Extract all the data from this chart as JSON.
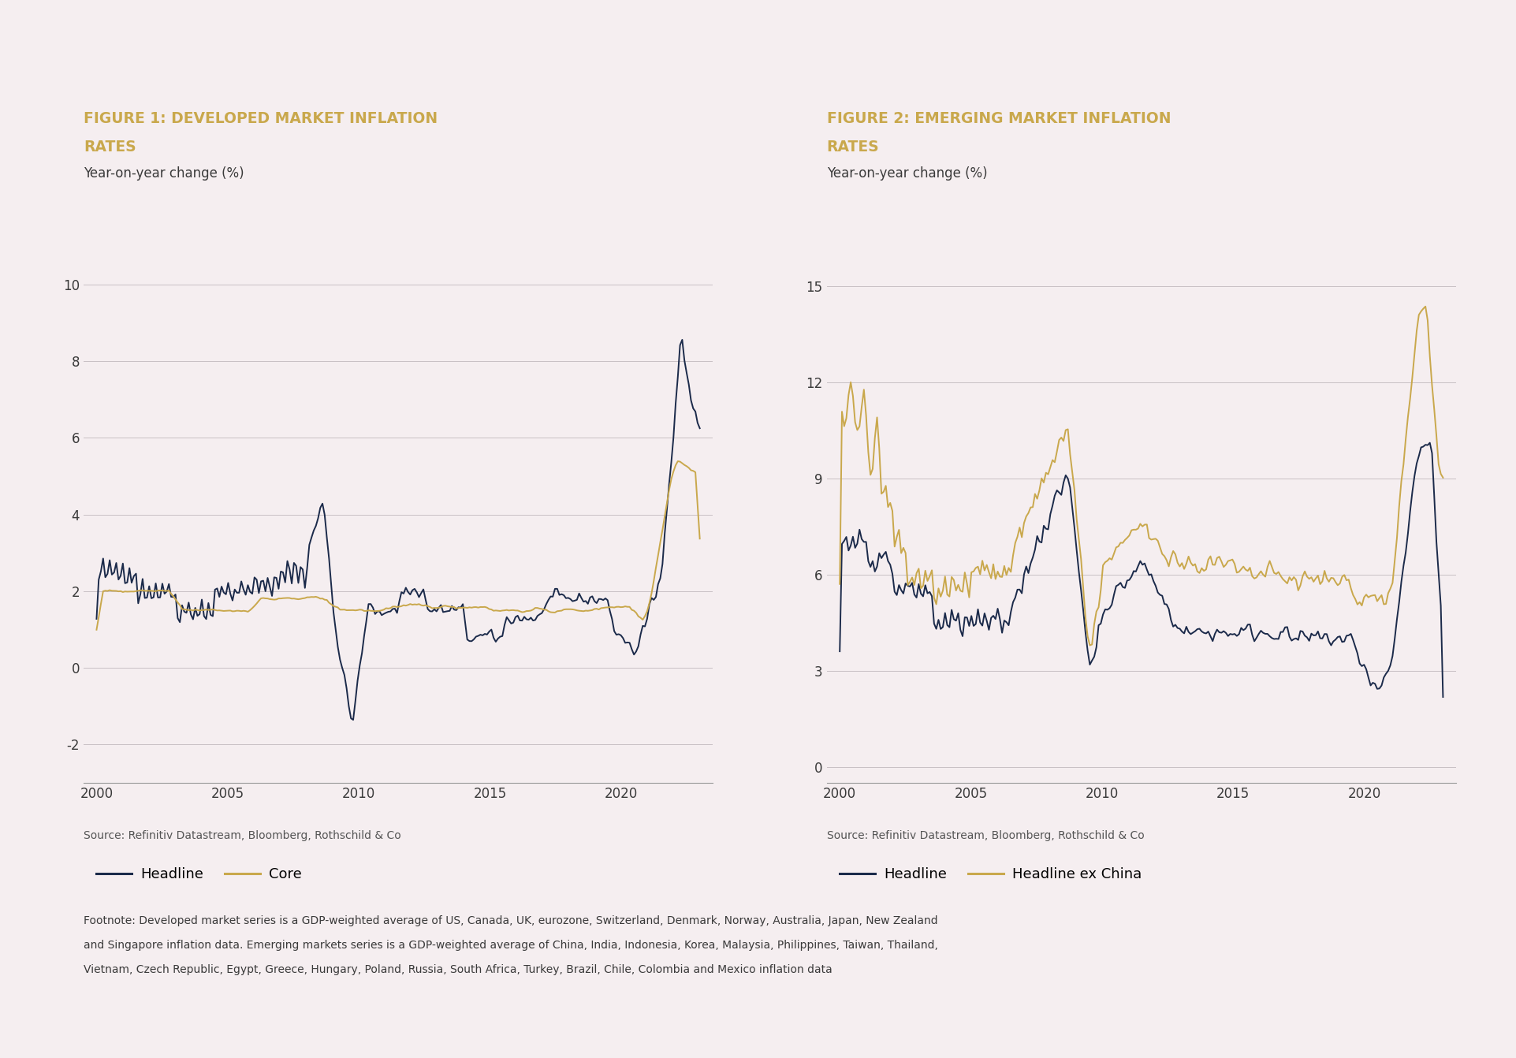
{
  "fig1_title_line1": "FIGURE 1: DEVELOPED MARKET INFLATION",
  "fig1_title_line2": "RATES",
  "fig2_title_line1": "FIGURE 2: EMERGING MARKET INFLATION",
  "fig2_title_line2": "RATES",
  "subtitle": "Year-on-year change (%)",
  "source": "Source: Refinitiv Datastream, Bloomberg, Rothschild & Co",
  "footnote_line1": "Footnote: Developed market series is a GDP-weighted average of US, Canada, UK, eurozone, Switzerland, Denmark, Norway, Australia, Japan, New Zealand",
  "footnote_line2": "and Singapore inflation data. Emerging markets series is a GDP-weighted average of China, India, Indonesia, Korea, Malaysia, Philippines, Taiwan, Thailand,",
  "footnote_line3": "Vietnam, Czech Republic, Egypt, Greece, Hungary, Poland, Russia, South Africa, Turkey, Brazil, Chile, Colombia and Mexico inflation data",
  "title_color": "#C9A84C",
  "subtitle_color": "#3A3A3A",
  "text_color": "#3A3A3A",
  "headline_color": "#1B2A4A",
  "core_color": "#C9A84C",
  "background_color": "#F5EEF0",
  "fig1_yticks": [
    -2,
    0,
    2,
    4,
    6,
    8,
    10
  ],
  "fig2_yticks": [
    0,
    3,
    6,
    9,
    12,
    15
  ],
  "xticks": [
    2000,
    2005,
    2010,
    2015,
    2020
  ],
  "fig1_ylim": [
    -3.0,
    10.8
  ],
  "fig2_ylim": [
    -0.5,
    16.0
  ],
  "fig1_legend": [
    "Headline",
    "Core"
  ],
  "fig2_legend": [
    "Headline",
    "Headline ex China"
  ],
  "grid_color": "#C8C0C4",
  "line_width": 1.4
}
